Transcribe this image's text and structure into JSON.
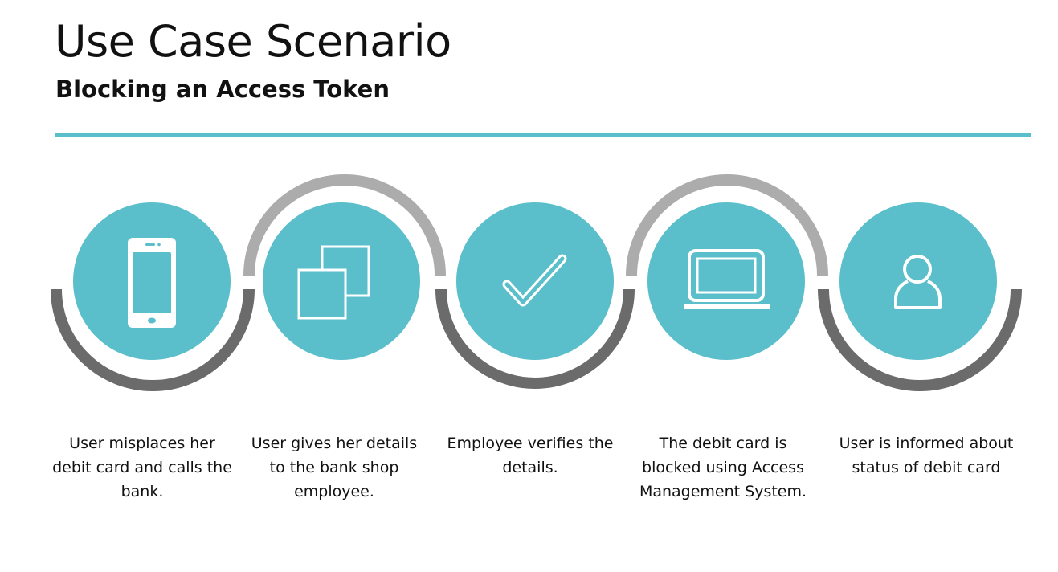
{
  "header": {
    "title": "Use Case Scenario",
    "subtitle": "Blocking an Access Token"
  },
  "colors": {
    "accent": "#5abfcb",
    "arc_dark": "#6b6b6b",
    "arc_light": "#acacac",
    "icon": "#ffffff"
  },
  "steps": [
    {
      "icon": "smartphone-icon",
      "caption": "User misplaces her debit card and calls the bank."
    },
    {
      "icon": "copy-squares-icon",
      "caption": "User gives her details to the bank shop employee."
    },
    {
      "icon": "checkmark-icon",
      "caption": "Employee verifies the details."
    },
    {
      "icon": "laptop-icon",
      "caption": "The debit card is blocked using Access Management System."
    },
    {
      "icon": "user-icon",
      "caption": "User is informed about status of debit card"
    }
  ]
}
